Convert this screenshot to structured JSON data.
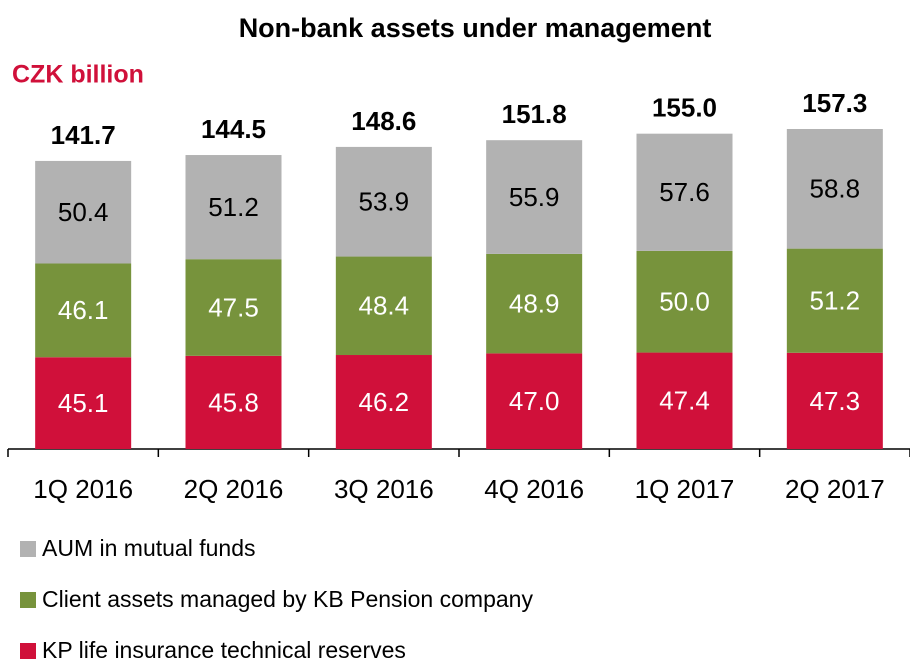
{
  "chart_data": {
    "type": "stacked_bar",
    "title": "Non-bank assets under management",
    "subtitle": "CZK billion",
    "categories": [
      "1Q 2016",
      "2Q 2016",
      "3Q 2016",
      "4Q 2016",
      "1Q 2017",
      "2Q 2017"
    ],
    "series": [
      {
        "name": "AUM in mutual funds",
        "color": "#b2b2b2",
        "values": [
          50.4,
          51.2,
          53.9,
          55.9,
          57.6,
          58.8
        ],
        "value_labels": [
          "50.4",
          "51.2",
          "53.9",
          "55.9",
          "57.6",
          "58.8"
        ]
      },
      {
        "name": "Client assets managed by KB Pension company",
        "color": "#77933c",
        "values": [
          46.1,
          47.5,
          48.4,
          48.9,
          50,
          51.2
        ],
        "value_labels": [
          "46.1",
          "47.5",
          "48.4",
          "48.9",
          "50.0",
          "51.2"
        ]
      },
      {
        "name": "KP life insurance technical reserves",
        "color": "#d0103a",
        "values": [
          45.1,
          45.8,
          46.2,
          47,
          47.4,
          47.3
        ],
        "value_labels": [
          "45.1",
          "45.8",
          "46.2",
          "47.0",
          "47.4",
          "47.3"
        ]
      }
    ],
    "totals": [
      141.7,
      144.5,
      148.6,
      151.8,
      155,
      157.3
    ],
    "total_labels": [
      "141.7",
      "144.5",
      "148.6",
      "151.8",
      "155.0",
      "157.3"
    ]
  }
}
